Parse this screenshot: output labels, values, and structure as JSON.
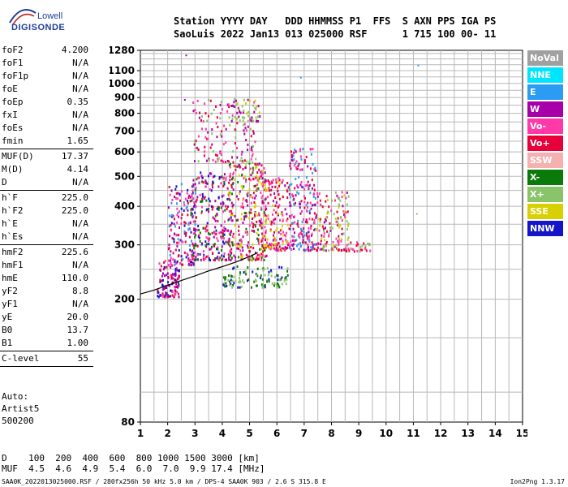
{
  "logo": {
    "line1": "Lowell",
    "line2": "DIGISONDE"
  },
  "header": {
    "line1": "Station YYYY DAY   DDD HHMMSS P1  FFS  S AXN PPS IGA PS",
    "line2": "SaoLuis 2022 Jan13 013 025000 RSF      1 715 100 00- 11"
  },
  "params": [
    {
      "name": "foF2",
      "value": "4.200"
    },
    {
      "name": "foF1",
      "value": "N/A"
    },
    {
      "name": "foF1p",
      "value": "N/A"
    },
    {
      "name": "foE",
      "value": "N/A"
    },
    {
      "name": "foEp",
      "value": "0.35"
    },
    {
      "name": "fxI",
      "value": "N/A"
    },
    {
      "name": "foEs",
      "value": "N/A"
    },
    {
      "name": "fmin",
      "value": "1.65"
    },
    {
      "divider": true
    },
    {
      "name": "MUF(D)",
      "value": "17.37"
    },
    {
      "name": "M(D)",
      "value": "4.14"
    },
    {
      "name": "D",
      "value": "N/A"
    },
    {
      "divider": true
    },
    {
      "name": "h`F",
      "value": "225.0"
    },
    {
      "name": "h`F2",
      "value": "225.0"
    },
    {
      "name": "h`E",
      "value": "N/A"
    },
    {
      "name": "h`Es",
      "value": "N/A"
    },
    {
      "divider": true
    },
    {
      "name": "hmF2",
      "value": "225.6"
    },
    {
      "name": "hmF1",
      "value": "N/A"
    },
    {
      "name": "hmE",
      "value": "110.0"
    },
    {
      "name": "yF2",
      "value": "8.8"
    },
    {
      "name": "yF1",
      "value": "N/A"
    },
    {
      "name": "yE",
      "value": "20.0"
    },
    {
      "name": "B0",
      "value": "13.7"
    },
    {
      "name": "B1",
      "value": "1.00"
    },
    {
      "divider": true
    },
    {
      "name": "C-level",
      "value": "55"
    },
    {
      "divider": true
    }
  ],
  "auto": {
    "line1": "Auto:",
    "line2": "Artist5",
    "line3": "500200"
  },
  "legend": [
    {
      "label": "NoVal",
      "color": "#a0a0a0"
    },
    {
      "label": "NNE",
      "color": "#00e5ff"
    },
    {
      "label": "E",
      "color": "#2b9bf4"
    },
    {
      "label": "W",
      "color": "#a800a8"
    },
    {
      "label": "Vo-",
      "color": "#ff3aa8"
    },
    {
      "label": "Vo+",
      "color": "#e8003a"
    },
    {
      "label": "SSW",
      "color": "#f5b0b0"
    },
    {
      "label": "X-",
      "color": "#0a7a0a"
    },
    {
      "label": "X+",
      "color": "#8ac46a"
    },
    {
      "label": "SSE",
      "color": "#d8d000"
    },
    {
      "label": "NNW",
      "color": "#1414c8"
    }
  ],
  "muf_table": {
    "line1": "D    100  200  400  600  800 1000 1500 3000 [km]",
    "line2": "MUF  4.5  4.6  4.9  5.4  6.0  7.0  9.9 17.4 [MHz]"
  },
  "footer": {
    "left": "SAA0K_2022013025000.RSF / 280fx256h 50 kHz 5.0 km / DPS-4 SAA0K 903 / 2.6 S 315.8 E",
    "right": "Ion2Png 1.3.17"
  },
  "chart_data": {
    "type": "scatter",
    "x_ticks": [
      "1",
      "2",
      "3",
      "4",
      "5",
      "6",
      "7",
      "8",
      "9",
      "10",
      "11",
      "12",
      "13",
      "14",
      "15"
    ],
    "y_ticks": [
      "80",
      "200",
      "300",
      "400",
      "500",
      "600",
      "700",
      "800",
      "900",
      "1000",
      "1100",
      "1280"
    ],
    "xlim": [
      1,
      15
    ],
    "y_scale": "log",
    "ylim": [
      80,
      1280
    ],
    "grid": true,
    "trace_line": [
      [
        1.0,
        208
      ],
      [
        1.5,
        214
      ],
      [
        2.0,
        222
      ],
      [
        2.5,
        230
      ],
      [
        3.0,
        238
      ],
      [
        3.5,
        247
      ],
      [
        4.0,
        255
      ],
      [
        4.5,
        264
      ],
      [
        5.0,
        275
      ],
      [
        5.3,
        283
      ]
    ],
    "clusters": [
      {
        "x": [
          1.6,
          2.4
        ],
        "y": [
          205,
          270
        ],
        "n": 120,
        "colors": [
          "#ff3aa8",
          "#a800a8",
          "#e8003a",
          "#1414c8"
        ]
      },
      {
        "x": [
          2.0,
          3.0
        ],
        "y": [
          260,
          480
        ],
        "n": 160,
        "colors": [
          "#ff3aa8",
          "#a800a8",
          "#e8003a",
          "#1414c8",
          "#2b9bf4"
        ]
      },
      {
        "x": [
          2.8,
          4.3
        ],
        "y": [
          270,
          520
        ],
        "n": 280,
        "colors": [
          "#ff3aa8",
          "#a800a8",
          "#e8003a",
          "#1414c8",
          "#0a7a0a"
        ]
      },
      {
        "x": [
          4.2,
          5.6
        ],
        "y": [
          270,
          560
        ],
        "n": 320,
        "colors": [
          "#ff3aa8",
          "#a800a8",
          "#e8003a",
          "#0a7a0a",
          "#d8d000"
        ]
      },
      {
        "x": [
          5.4,
          6.4
        ],
        "y": [
          290,
          500
        ],
        "n": 180,
        "colors": [
          "#ff3aa8",
          "#a800a8",
          "#e8003a",
          "#d8d000"
        ]
      },
      {
        "x": [
          6.4,
          7.4
        ],
        "y": [
          290,
          620
        ],
        "n": 220,
        "colors": [
          "#ff3aa8",
          "#a800a8",
          "#e8003a",
          "#2b9bf4"
        ]
      },
      {
        "x": [
          7.4,
          8.6
        ],
        "y": [
          290,
          450
        ],
        "n": 150,
        "colors": [
          "#ff3aa8",
          "#a800a8",
          "#e8003a",
          "#d8d000",
          "#8ac46a"
        ]
      },
      {
        "x": [
          8.5,
          9.5
        ],
        "y": [
          288,
          310
        ],
        "n": 30,
        "colors": [
          "#e8003a",
          "#8ac46a",
          "#ff3aa8"
        ]
      },
      {
        "x": [
          2.9,
          5.2
        ],
        "y": [
          560,
          900
        ],
        "n": 140,
        "colors": [
          "#a800a8",
          "#e8003a",
          "#ff3aa8",
          "#8ac46a"
        ]
      },
      {
        "x": [
          4.3,
          5.4
        ],
        "y": [
          760,
          900
        ],
        "n": 50,
        "colors": [
          "#d8d000",
          "#8ac46a",
          "#a800a8"
        ]
      },
      {
        "x": [
          4.0,
          6.4
        ],
        "y": [
          220,
          260
        ],
        "n": 110,
        "colors": [
          "#0a7a0a",
          "#1414c8",
          "#8ac46a"
        ]
      }
    ],
    "outliers": [
      {
        "x": 2.65,
        "y": 1240,
        "color": "#a800a8"
      },
      {
        "x": 11.15,
        "y": 1150,
        "color": "#2b9bf4"
      },
      {
        "x": 6.85,
        "y": 1050,
        "color": "#2b9bf4"
      },
      {
        "x": 11.1,
        "y": 380,
        "color": "#8ac46a"
      },
      {
        "x": 2.6,
        "y": 890,
        "color": "#a800a8"
      }
    ]
  }
}
